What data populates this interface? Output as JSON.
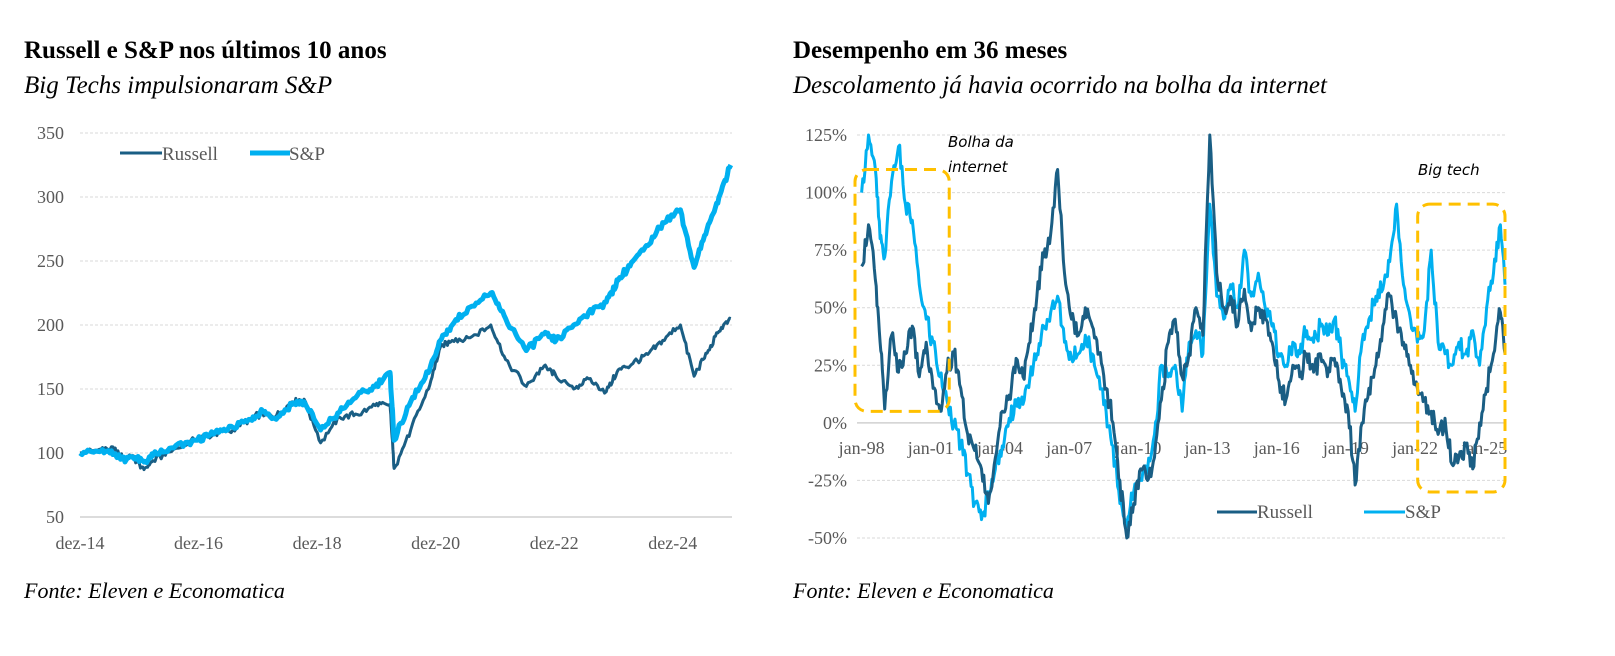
{
  "colors": {
    "russell": "#1a5e84",
    "sp": "#00b0f0",
    "highlight": "#ffc000",
    "grid": "#d9d9d9",
    "axis_text": "#595959"
  },
  "left": {
    "title": "Russell e S&P nos últimos 10 anos",
    "subtitle": "Big Techs impulsionaram S&P",
    "source": "Fonte: Eleven e Economatica"
  },
  "right": {
    "title": "Desempenho em 36 meses",
    "subtitle": "Descolamento já havia ocorrido na bolha da internet",
    "source": "Fonte: Eleven e Economatica"
  },
  "chart_data": [
    {
      "type": "line",
      "title": "Russell e S&P nos últimos 10 anos",
      "subtitle": "Big Techs impulsionaram S&P",
      "xlabel": "",
      "ylabel": "",
      "ylim": [
        50,
        350
      ],
      "yticks": [
        50,
        100,
        150,
        200,
        250,
        300,
        350
      ],
      "ytick_labels": [
        "50",
        "100",
        "150",
        "200",
        "250",
        "300",
        "350"
      ],
      "xlim": [
        2014.92,
        2025.92
      ],
      "xticks": [
        2014.92,
        2016.92,
        2018.92,
        2020.92,
        2022.92,
        2024.92
      ],
      "xtick_labels": [
        "dez-14",
        "dez-16",
        "dez-18",
        "dez-20",
        "dez-22",
        "dez-24"
      ],
      "grid": true,
      "legend": {
        "position": "top-left",
        "entries": [
          "Russell",
          "S&P"
        ]
      },
      "x": [
        2014.92,
        2015.25,
        2015.5,
        2015.65,
        2015.8,
        2016.0,
        2016.15,
        2016.5,
        2016.9,
        2017.2,
        2017.5,
        2017.8,
        2018.0,
        2018.2,
        2018.5,
        2018.7,
        2018.98,
        2019.3,
        2019.6,
        2019.9,
        2020.15,
        2020.22,
        2020.5,
        2020.8,
        2021.0,
        2021.2,
        2021.5,
        2021.85,
        2022.1,
        2022.45,
        2022.75,
        2022.95,
        2023.25,
        2023.5,
        2023.8,
        2024.0,
        2024.25,
        2024.5,
        2024.75,
        2025.05,
        2025.28,
        2025.5,
        2025.7,
        2025.9
      ],
      "series": [
        {
          "name": "Russell",
          "color": "#1a5e84",
          "values": [
            100,
            103,
            103,
            96,
            98,
            87,
            94,
            103,
            111,
            115,
            118,
            127,
            131,
            128,
            140,
            142,
            108,
            128,
            130,
            137,
            138,
            88,
            118,
            150,
            183,
            188,
            190,
            200,
            173,
            152,
            168,
            160,
            150,
            158,
            148,
            165,
            170,
            177,
            188,
            200,
            160,
            178,
            195,
            205
          ]
        },
        {
          "name": "S&P",
          "color": "#00b0f0",
          "values": [
            100,
            101,
            99,
            95,
            97,
            93,
            98,
            104,
            110,
            116,
            120,
            126,
            133,
            127,
            138,
            140,
            118,
            132,
            145,
            152,
            163,
            110,
            140,
            163,
            188,
            200,
            214,
            225,
            205,
            180,
            193,
            188,
            200,
            210,
            218,
            235,
            250,
            262,
            280,
            290,
            245,
            275,
            300,
            325
          ]
        }
      ]
    },
    {
      "type": "line",
      "title": "Desempenho em 36 meses",
      "subtitle": "Descolamento já havia ocorrido na bolha da internet",
      "xlabel": "",
      "ylabel": "",
      "ylim": [
        -0.5,
        1.25
      ],
      "yticks": [
        -0.5,
        -0.25,
        0,
        0.25,
        0.5,
        0.75,
        1.0,
        1.25
      ],
      "ytick_labels": [
        "-50%",
        "-25%",
        "0%",
        "25%",
        "50%",
        "75%",
        "100%",
        "125%"
      ],
      "xlim": [
        1997.8,
        2025.9
      ],
      "xticks": [
        1998,
        2001,
        2004,
        2007,
        2010,
        2013,
        2016,
        2019,
        2022,
        2025
      ],
      "xtick_labels": [
        "jan-98",
        "jan-01",
        "jan-04",
        "jan-07",
        "jan-10",
        "jan-13",
        "jan-16",
        "jan-19",
        "jan-22",
        "jan-25"
      ],
      "grid": true,
      "legend": {
        "position": "bottom-right",
        "entries": [
          "Russell",
          "S&P"
        ]
      },
      "annotations": [
        {
          "text_line1": "Bolha da",
          "text_line2": "internet",
          "range": [
            1997.8,
            2001.8
          ],
          "ylim": [
            0.05,
            1.1
          ]
        },
        {
          "text_line1": "Big tech",
          "text_line2": "",
          "range": [
            2022.2,
            2025.9
          ],
          "ylim": [
            -0.3,
            0.95
          ]
        }
      ],
      "x": [
        1998.0,
        1998.3,
        1998.6,
        1998.8,
        1999.0,
        1999.3,
        1999.6,
        1999.9,
        2000.2,
        2000.5,
        2000.8,
        2001.1,
        2001.4,
        2001.7,
        2002.0,
        2002.3,
        2002.6,
        2002.9,
        2003.2,
        2003.5,
        2003.8,
        2004.1,
        2004.4,
        2004.7,
        2005.0,
        2005.3,
        2005.6,
        2005.9,
        2006.2,
        2006.5,
        2006.8,
        2007.1,
        2007.4,
        2007.7,
        2008.0,
        2008.3,
        2008.6,
        2008.9,
        2009.2,
        2009.5,
        2009.8,
        2010.1,
        2010.4,
        2010.7,
        2011.0,
        2011.3,
        2011.6,
        2011.9,
        2012.2,
        2012.5,
        2012.8,
        2013.1,
        2013.4,
        2013.7,
        2014.0,
        2014.3,
        2014.6,
        2014.9,
        2015.2,
        2015.5,
        2015.8,
        2016.1,
        2016.4,
        2016.7,
        2017.0,
        2017.3,
        2017.6,
        2017.9,
        2018.2,
        2018.5,
        2018.8,
        2019.1,
        2019.4,
        2019.7,
        2020.0,
        2020.3,
        2020.6,
        2020.9,
        2021.2,
        2021.5,
        2021.8,
        2022.1,
        2022.4,
        2022.7,
        2023.0,
        2023.3,
        2023.6,
        2023.9,
        2024.2,
        2024.5,
        2024.8,
        2025.1,
        2025.4,
        2025.7,
        2025.9
      ],
      "series": [
        {
          "name": "Russell",
          "color": "#1a5e84",
          "values": [
            0.68,
            0.86,
            0.62,
            0.35,
            0.06,
            0.38,
            0.22,
            0.3,
            0.42,
            0.2,
            0.35,
            0.15,
            0.05,
            0.22,
            0.3,
            0.15,
            -0.05,
            -0.12,
            -0.2,
            -0.35,
            -0.15,
            0.05,
            0.12,
            0.28,
            0.2,
            0.35,
            0.55,
            0.72,
            0.82,
            1.1,
            0.65,
            0.45,
            0.38,
            0.5,
            0.42,
            0.3,
            0.15,
            0.0,
            -0.25,
            -0.5,
            -0.35,
            -0.2,
            -0.25,
            -0.15,
            0.1,
            0.35,
            0.45,
            0.2,
            0.3,
            0.5,
            0.38,
            1.25,
            0.65,
            0.5,
            0.55,
            0.42,
            0.58,
            0.4,
            0.5,
            0.45,
            0.35,
            0.18,
            0.1,
            0.25,
            0.2,
            0.3,
            0.22,
            0.3,
            0.2,
            0.28,
            0.15,
            0.05,
            -0.27,
            0.0,
            0.15,
            0.25,
            0.42,
            0.55,
            0.45,
            0.35,
            0.25,
            0.15,
            0.1,
            0.05,
            -0.05,
            0.02,
            -0.18,
            -0.15,
            -0.1,
            -0.2,
            0.0,
            0.15,
            0.3,
            0.48,
            0.3
          ]
        },
        {
          "name": "S&P",
          "color": "#00b0f0",
          "values": [
            1.0,
            1.25,
            1.1,
            0.8,
            0.72,
            1.05,
            1.2,
            0.95,
            0.88,
            0.6,
            0.45,
            0.35,
            0.2,
            0.1,
            0.0,
            -0.1,
            -0.22,
            -0.35,
            -0.42,
            -0.3,
            -0.2,
            -0.1,
            0.02,
            0.1,
            0.08,
            0.2,
            0.3,
            0.42,
            0.48,
            0.55,
            0.35,
            0.28,
            0.3,
            0.38,
            0.3,
            0.2,
            0.05,
            -0.1,
            -0.35,
            -0.45,
            -0.3,
            -0.25,
            -0.2,
            -0.05,
            0.25,
            0.2,
            0.25,
            0.05,
            0.35,
            0.4,
            0.3,
            0.95,
            0.55,
            0.45,
            0.6,
            0.5,
            0.75,
            0.55,
            0.65,
            0.5,
            0.42,
            0.3,
            0.25,
            0.35,
            0.3,
            0.4,
            0.35,
            0.42,
            0.38,
            0.45,
            0.3,
            0.2,
            0.05,
            0.35,
            0.45,
            0.55,
            0.58,
            0.7,
            0.95,
            0.6,
            0.45,
            0.35,
            0.4,
            0.75,
            0.35,
            0.3,
            0.25,
            0.35,
            0.3,
            0.4,
            0.25,
            0.5,
            0.65,
            0.86,
            0.6
          ]
        }
      ]
    }
  ]
}
